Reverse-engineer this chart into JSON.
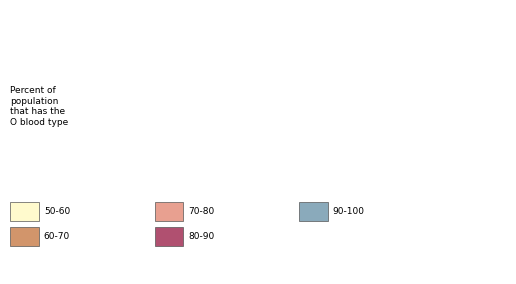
{
  "title": "",
  "legend_title": "Percent of\npopulation\nthat has the\nO blood type",
  "legend_items": [
    {
      "label": "50-60",
      "color": "#FFFACD"
    },
    {
      "label": "60-70",
      "color": "#D2956B"
    },
    {
      "label": "70-80",
      "color": "#E8A090"
    },
    {
      "label": "80-90",
      "color": "#B05070"
    },
    {
      "label": "90-100",
      "color": "#8AAABB"
    }
  ],
  "background_color": "#FFFFFF",
  "ocean_color": "#FFFFFF",
  "border_color": "#333333",
  "figsize": [
    5.16,
    2.84
  ],
  "dpi": 100
}
